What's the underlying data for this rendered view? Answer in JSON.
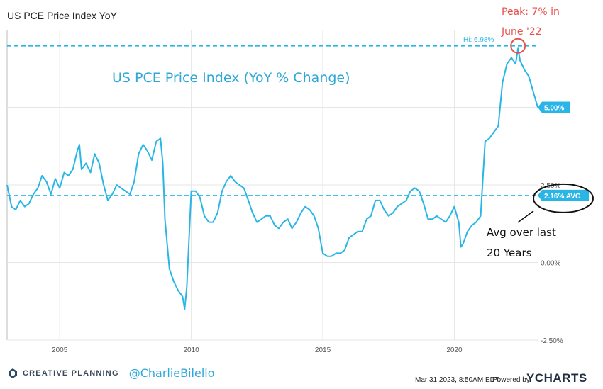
{
  "chart_title": "US PCE Price Index YoY",
  "footer": {
    "brand": "CREATIVE PLANNING",
    "handle": "@CharlieBilello",
    "date_text": "Mar 31 2023, 8:50AM EDT.",
    "powered_by": "Powered by",
    "ycharts": "YCHARTS"
  },
  "colors": {
    "series": "#29b6e6",
    "annotation_red": "#e8504a",
    "handwriting_blue": "#2ea8d8",
    "grid": "#e6e6e6",
    "axis_text": "#555555"
  },
  "chart_data": {
    "type": "line",
    "title": "US PCE Price Index YoY",
    "subtitle_annotation": "US PCE Price Index (YoY % Change)",
    "ylim": [
      -2.5,
      7.5
    ],
    "yticks": [
      {
        "value": -2.5,
        "label": "-2.50%"
      },
      {
        "value": 0,
        "label": "0.00%"
      },
      {
        "value": 2.5,
        "label": "2.50%"
      },
      {
        "value": 5,
        "label": "5.00%"
      }
    ],
    "xlim": [
      2003.0,
      2023.17
    ],
    "xticks": [
      {
        "value": 2005,
        "label": "2005"
      },
      {
        "value": 2010,
        "label": "2010"
      },
      {
        "value": 2015,
        "label": "2015"
      },
      {
        "value": 2020,
        "label": "2020"
      }
    ],
    "grid": true,
    "series": [
      {
        "color": "#29b6e6",
        "x": [
          2003.0,
          2003.17,
          2003.33,
          2003.5,
          2003.67,
          2003.83,
          2004.0,
          2004.17,
          2004.33,
          2004.5,
          2004.67,
          2004.83,
          2005.0,
          2005.17,
          2005.33,
          2005.5,
          2005.67,
          2005.75,
          2005.83,
          2006.0,
          2006.17,
          2006.33,
          2006.5,
          2006.67,
          2006.83,
          2007.0,
          2007.17,
          2007.33,
          2007.5,
          2007.67,
          2007.83,
          2008.0,
          2008.17,
          2008.33,
          2008.5,
          2008.67,
          2008.83,
          2008.92,
          2009.0,
          2009.17,
          2009.33,
          2009.5,
          2009.67,
          2009.75,
          2009.83,
          2010.0,
          2010.17,
          2010.33,
          2010.5,
          2010.67,
          2010.83,
          2011.0,
          2011.17,
          2011.33,
          2011.5,
          2011.67,
          2011.83,
          2012.0,
          2012.17,
          2012.33,
          2012.5,
          2012.67,
          2012.83,
          2013.0,
          2013.17,
          2013.33,
          2013.5,
          2013.67,
          2013.83,
          2014.0,
          2014.17,
          2014.33,
          2014.5,
          2014.67,
          2014.83,
          2015.0,
          2015.17,
          2015.33,
          2015.5,
          2015.67,
          2015.83,
          2016.0,
          2016.17,
          2016.33,
          2016.5,
          2016.67,
          2016.83,
          2017.0,
          2017.17,
          2017.33,
          2017.5,
          2017.67,
          2017.83,
          2018.0,
          2018.17,
          2018.33,
          2018.5,
          2018.67,
          2018.83,
          2019.0,
          2019.17,
          2019.33,
          2019.5,
          2019.67,
          2019.83,
          2020.0,
          2020.17,
          2020.25,
          2020.33,
          2020.5,
          2020.67,
          2020.83,
          2021.0,
          2021.17,
          2021.33,
          2021.5,
          2021.67,
          2021.83,
          2022.0,
          2022.17,
          2022.33,
          2022.42,
          2022.5,
          2022.67,
          2022.83,
          2023.0,
          2023.17
        ],
        "values": [
          2.5,
          1.8,
          1.7,
          2.0,
          1.8,
          1.9,
          2.2,
          2.4,
          2.8,
          2.6,
          2.2,
          2.7,
          2.4,
          2.9,
          2.8,
          3.0,
          3.6,
          3.8,
          3.0,
          3.2,
          2.9,
          3.5,
          3.2,
          2.5,
          2.0,
          2.2,
          2.5,
          2.4,
          2.3,
          2.2,
          2.6,
          3.5,
          3.8,
          3.6,
          3.3,
          3.9,
          4.0,
          3.2,
          1.4,
          -0.2,
          -0.6,
          -0.9,
          -1.1,
          -1.5,
          -0.8,
          2.3,
          2.3,
          2.1,
          1.5,
          1.3,
          1.3,
          1.6,
          2.3,
          2.6,
          2.8,
          2.6,
          2.5,
          2.4,
          2.0,
          1.6,
          1.3,
          1.4,
          1.5,
          1.5,
          1.2,
          1.1,
          1.3,
          1.4,
          1.1,
          1.3,
          1.6,
          1.8,
          1.7,
          1.5,
          1.1,
          0.3,
          0.2,
          0.2,
          0.3,
          0.3,
          0.4,
          0.8,
          0.9,
          1.0,
          1.0,
          1.4,
          1.5,
          2.0,
          2.0,
          1.7,
          1.5,
          1.6,
          1.8,
          1.9,
          2.0,
          2.3,
          2.4,
          2.3,
          1.9,
          1.4,
          1.4,
          1.5,
          1.4,
          1.3,
          1.5,
          1.8,
          1.3,
          0.5,
          0.6,
          1.0,
          1.2,
          1.3,
          1.5,
          3.9,
          4.0,
          4.2,
          4.4,
          5.8,
          6.4,
          6.6,
          6.4,
          6.9,
          6.5,
          6.2,
          6.0,
          5.5,
          5.0
        ],
        "high": {
          "value": 6.98,
          "label": "Hi: 6.98%"
        },
        "last": {
          "value": 5.0,
          "label": "5.00%"
        },
        "average": {
          "value": 2.16,
          "label": "2.16% AVG"
        }
      }
    ],
    "annotations": {
      "handwritten_title": "US PCE Price Index (YoY % Change)",
      "peak_line1": "Peak: 7% in",
      "peak_line2": "June '22",
      "avg_line1": "Avg over last",
      "avg_line2": "20 Years"
    }
  }
}
